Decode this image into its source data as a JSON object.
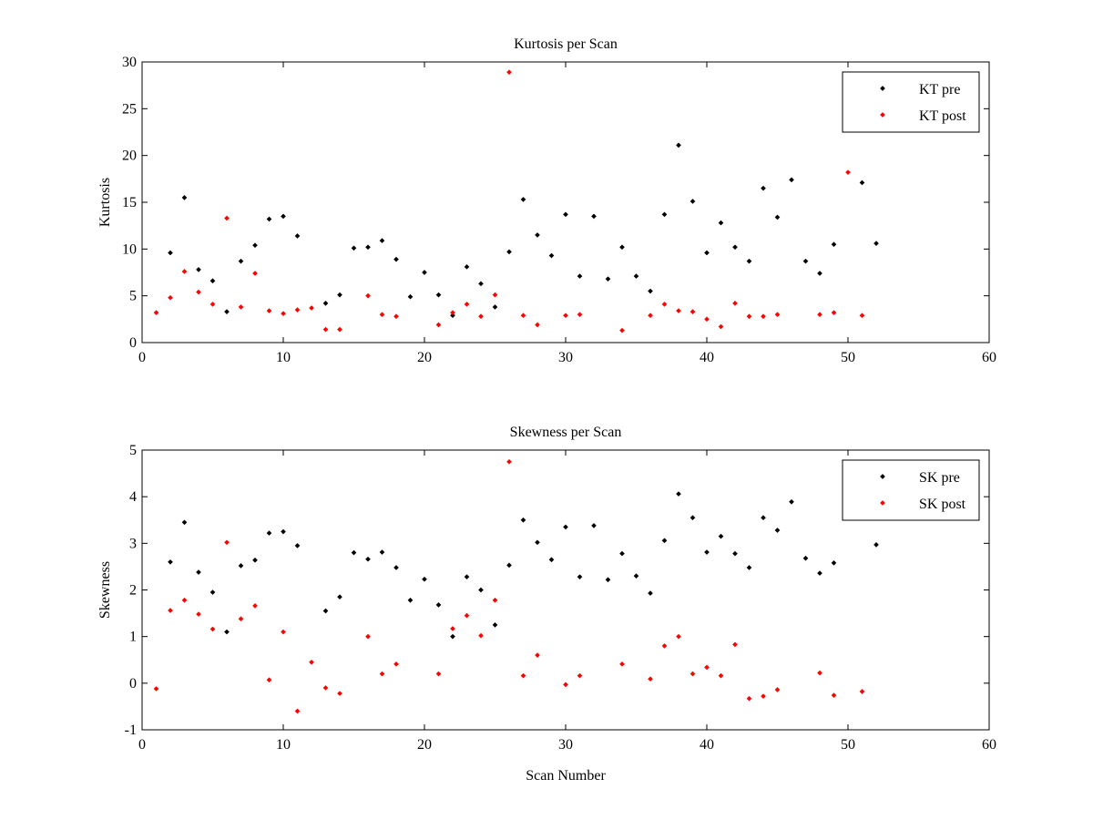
{
  "chart_data": [
    {
      "type": "scatter",
      "title": "Kurtosis per Scan",
      "xlabel": "",
      "ylabel": "Kurtosis",
      "xlim": [
        0,
        60
      ],
      "ylim": [
        0,
        30
      ],
      "xticks": [
        0,
        10,
        20,
        30,
        40,
        50,
        60
      ],
      "yticks": [
        0,
        5,
        10,
        15,
        20,
        25,
        30
      ],
      "legend_position": "top-right",
      "series": [
        {
          "name": "KT pre",
          "color": "#000000",
          "x": [
            2,
            3,
            4,
            5,
            6,
            7,
            8,
            9,
            10,
            11,
            13,
            14,
            15,
            16,
            17,
            18,
            19,
            20,
            21,
            22,
            23,
            24,
            25,
            26,
            27,
            28,
            29,
            30,
            31,
            32,
            33,
            34,
            35,
            36,
            37,
            38,
            39,
            40,
            41,
            42,
            43,
            44,
            45,
            46,
            47,
            48,
            49,
            51,
            52
          ],
          "y": [
            9.6,
            15.5,
            7.8,
            6.6,
            3.3,
            8.7,
            10.4,
            13.2,
            13.5,
            11.4,
            4.2,
            5.1,
            10.1,
            10.2,
            10.9,
            8.9,
            4.9,
            7.5,
            5.1,
            2.9,
            8.1,
            6.3,
            3.8,
            9.7,
            15.3,
            11.5,
            9.3,
            13.7,
            7.1,
            13.5,
            6.8,
            10.2,
            7.1,
            5.5,
            13.7,
            21.1,
            15.1,
            9.6,
            12.8,
            10.2,
            8.7,
            16.5,
            13.4,
            17.4,
            8.7,
            7.4,
            10.5,
            17.1,
            10.6
          ]
        },
        {
          "name": "KT post",
          "color": "#ff0000",
          "x": [
            1,
            2,
            3,
            4,
            5,
            6,
            7,
            8,
            9,
            10,
            11,
            12,
            13,
            14,
            16,
            17,
            18,
            21,
            22,
            23,
            24,
            25,
            26,
            27,
            28,
            30,
            31,
            34,
            36,
            37,
            38,
            39,
            40,
            41,
            42,
            43,
            44,
            45,
            48,
            49,
            50,
            51
          ],
          "y": [
            3.2,
            4.8,
            7.6,
            5.4,
            4.1,
            13.3,
            3.8,
            7.4,
            3.4,
            3.1,
            3.5,
            3.7,
            1.4,
            1.4,
            5.0,
            3.0,
            2.8,
            1.9,
            3.2,
            4.1,
            2.8,
            5.1,
            28.9,
            2.9,
            1.9,
            2.9,
            3.0,
            1.3,
            2.9,
            4.1,
            3.4,
            3.3,
            2.5,
            1.7,
            4.2,
            2.8,
            2.8,
            3.0,
            3.0,
            3.2,
            18.2,
            2.9
          ]
        }
      ]
    },
    {
      "type": "scatter",
      "title": "Skewness per Scan",
      "xlabel": "Scan Number",
      "ylabel": "Skewness",
      "xlim": [
        0,
        60
      ],
      "ylim": [
        -1,
        5
      ],
      "xticks": [
        0,
        10,
        20,
        30,
        40,
        50,
        60
      ],
      "yticks": [
        -1,
        0,
        1,
        2,
        3,
        4,
        5
      ],
      "legend_position": "top-right",
      "series": [
        {
          "name": "SK pre",
          "color": "#000000",
          "x": [
            2,
            3,
            4,
            5,
            6,
            7,
            8,
            9,
            10,
            11,
            13,
            14,
            15,
            16,
            17,
            18,
            19,
            20,
            21,
            22,
            23,
            24,
            25,
            26,
            27,
            28,
            29,
            30,
            31,
            32,
            33,
            34,
            35,
            36,
            37,
            38,
            39,
            40,
            41,
            42,
            43,
            44,
            45,
            46,
            47,
            48,
            49,
            52
          ],
          "y": [
            2.6,
            3.45,
            2.38,
            1.95,
            1.1,
            2.52,
            2.64,
            3.22,
            3.25,
            2.95,
            1.55,
            1.85,
            2.8,
            2.66,
            2.81,
            2.48,
            1.78,
            2.23,
            1.68,
            1.0,
            2.28,
            2.0,
            1.25,
            2.53,
            3.5,
            3.02,
            2.65,
            3.35,
            2.28,
            3.38,
            2.22,
            2.78,
            2.3,
            1.93,
            3.06,
            4.06,
            3.55,
            2.81,
            3.15,
            2.78,
            2.48,
            3.55,
            3.28,
            3.89,
            2.68,
            2.36,
            2.58,
            2.97
          ]
        },
        {
          "name": "SK post",
          "color": "#ff0000",
          "x": [
            1,
            2,
            3,
            4,
            5,
            6,
            7,
            8,
            9,
            10,
            11,
            12,
            13,
            14,
            16,
            17,
            18,
            21,
            22,
            23,
            24,
            25,
            26,
            27,
            28,
            30,
            31,
            34,
            36,
            37,
            38,
            39,
            40,
            41,
            42,
            43,
            44,
            45,
            48,
            49,
            51
          ],
          "y": [
            -0.12,
            1.56,
            1.78,
            1.48,
            1.16,
            3.02,
            1.38,
            1.66,
            0.07,
            1.1,
            -0.6,
            0.45,
            -0.1,
            -0.22,
            1.0,
            0.2,
            0.41,
            0.2,
            1.17,
            1.45,
            1.02,
            1.78,
            4.75,
            0.16,
            0.6,
            -0.03,
            0.16,
            0.41,
            0.09,
            0.8,
            1.0,
            0.2,
            0.34,
            0.16,
            0.83,
            -0.33,
            -0.28,
            -0.14,
            0.22,
            -0.26,
            -0.18
          ]
        }
      ]
    }
  ]
}
